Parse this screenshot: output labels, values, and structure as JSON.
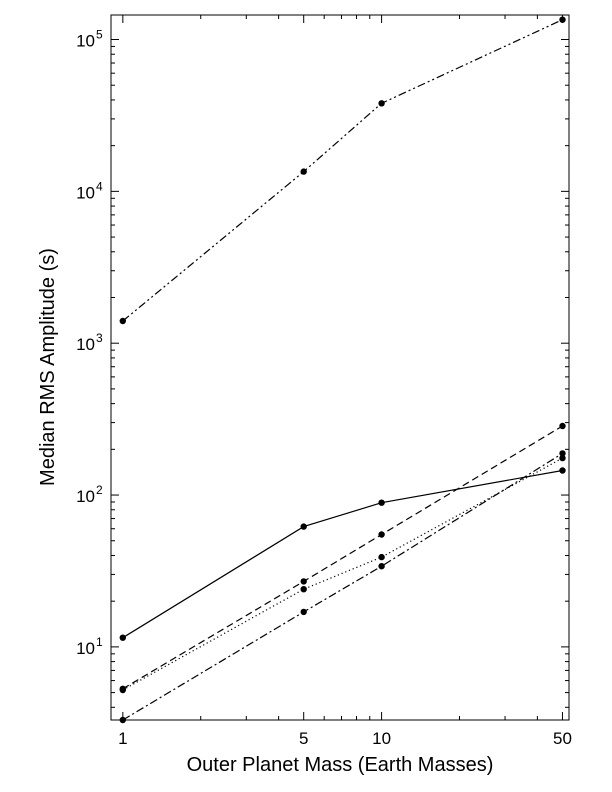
{
  "chart_data": {
    "type": "line",
    "title": "",
    "xlabel": "Outer Planet Mass (Earth Masses)",
    "ylabel": "Median RMS Amplitude (s)",
    "xscale": "log",
    "yscale": "log",
    "xlim": [
      0.9,
      53
    ],
    "ylim": [
      3.3,
      145000
    ],
    "grid": false,
    "legend": "none",
    "x": [
      1,
      5,
      10,
      50
    ],
    "xticks": [
      {
        "value": 1,
        "label": "1"
      },
      {
        "value": 5,
        "label": "5"
      },
      {
        "value": 10,
        "label": "10"
      },
      {
        "value": 50,
        "label": "50"
      }
    ],
    "yticks": [
      {
        "value": 10,
        "label": "10",
        "exp": "1"
      },
      {
        "value": 100,
        "label": "10",
        "exp": "2"
      },
      {
        "value": 1000,
        "label": "10",
        "exp": "3"
      },
      {
        "value": 10000,
        "label": "10",
        "exp": "4"
      },
      {
        "value": 100000,
        "label": "10",
        "exp": "5"
      }
    ],
    "series": [
      {
        "style": "dash-dot-dot",
        "color": "#000000",
        "values": [
          1400,
          13500,
          38000,
          135000
        ]
      },
      {
        "style": "solid",
        "color": "#000000",
        "values": [
          11.5,
          62,
          89,
          145
        ]
      },
      {
        "style": "dashed",
        "color": "#000000",
        "values": [
          5.3,
          27,
          55,
          285
        ]
      },
      {
        "style": "dotted",
        "color": "#000000",
        "values": [
          5.2,
          24,
          39,
          175
        ]
      },
      {
        "style": "dash-dot",
        "color": "#000000",
        "values": [
          3.3,
          17,
          34,
          188
        ]
      }
    ]
  }
}
